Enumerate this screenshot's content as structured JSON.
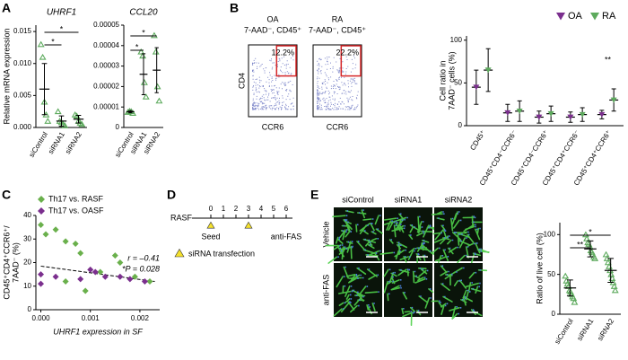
{
  "panel_labels": [
    "A",
    "B",
    "C",
    "D",
    "E"
  ],
  "chart_data": [
    {
      "type": "strip",
      "title": "UHRF1",
      "y_label": "Relative mRNA expression",
      "categories": [
        "siControl",
        "siRNA1",
        "siRNA2"
      ],
      "values": [
        [
          0.013,
          0.011,
          0.004,
          0.002,
          0.001
        ],
        [
          0.0025,
          0.001,
          0.0008,
          0.0005,
          0.0003
        ],
        [
          0.002,
          0.0018,
          0.001,
          0.0007,
          0.0005
        ]
      ],
      "means": [
        0.006,
        0.001,
        0.0013
      ],
      "errors": [
        0.004,
        0.0008,
        0.0006
      ],
      "color": "#5daa5d",
      "ylim": [
        0,
        0.016
      ],
      "yticks": [
        {
          "value": 0,
          "label": "0.000"
        },
        {
          "value": 0.005,
          "label": "0.005"
        },
        {
          "value": 0.01,
          "label": "0.010"
        },
        {
          "value": 0.015,
          "label": "0.015"
        }
      ],
      "significance": [
        "*",
        "*"
      ]
    },
    {
      "type": "strip",
      "title": "CCL20",
      "categories": [
        "siControl",
        "siRNA1",
        "siRNA2"
      ],
      "values": [
        [
          7.5e-06,
          8e-06,
          7.8e-06,
          7e-06
        ],
        [
          3.7e-05,
          3.5e-05,
          2.2e-05,
          1.5e-05
        ],
        [
          4.5e-05,
          3.7e-05,
          2e-05,
          1.3e-05
        ]
      ],
      "means": [
        7.7e-06,
        2.6e-05,
        2.8e-05
      ],
      "errors": [
        5e-07,
        1e-05,
        1.1e-05
      ],
      "color": "#5daa5d",
      "ylim": [
        0,
        5e-05
      ],
      "yticks": [
        0,
        1e-05,
        2e-05,
        3e-05,
        4e-05,
        5e-05
      ],
      "significance": [
        "*",
        "*"
      ]
    },
    {
      "type": "mean_error",
      "y_label": [
        "Cell ratio in",
        "7AAD⁻ cells (%)"
      ],
      "categories": [
        "CD45⁺",
        "CD45⁺CD4⁻CCR6⁻",
        "CD45⁺CD4⁻CCR6⁺",
        "CD45⁺CD4⁺CCR6⁻",
        "CD45⁺CD4⁺CCR6⁺"
      ],
      "series": [
        {
          "name": "OA",
          "color": "#7b2f8e",
          "values": [
            45,
            15,
            10,
            10,
            13
          ],
          "errors": [
            20,
            10,
            7,
            6,
            5
          ]
        },
        {
          "name": "RA",
          "color": "#5daa5d",
          "values": [
            65,
            17,
            14,
            13,
            30
          ],
          "errors": [
            25,
            12,
            9,
            8,
            13
          ]
        }
      ],
      "ylim": [
        0,
        105
      ],
      "yticks": [
        0,
        50,
        100
      ],
      "legend": "top-right",
      "significance": [
        "**"
      ]
    },
    {
      "type": "scatter",
      "y_label": [
        "CD45⁺CD4⁺CCR6⁺/",
        "7AAD⁻ (%)"
      ],
      "x_label": "UHRF1 expression in SF",
      "series": [
        {
          "name": "Th17 vs. RASF",
          "color": "#6ab04c",
          "x": [
            0,
            0.0001,
            0.0003,
            0.0005,
            0.0007,
            0.0005,
            0.0008,
            0.0009,
            0.0012,
            0.0015,
            0.0016,
            0.0019,
            0.0022
          ],
          "values": [
            36,
            32,
            34,
            29,
            28,
            12,
            24,
            8,
            16,
            23,
            20,
            14,
            12
          ]
        },
        {
          "name": "Th17 vs. OASF",
          "color": "#7b2f8e",
          "x": [
            0,
            0,
            0.0003,
            0.0008,
            0.001,
            0.0011,
            0.0013,
            0.0016,
            0.0018,
            0.0021
          ],
          "values": [
            15,
            11,
            14,
            13,
            17,
            16,
            14,
            14,
            13,
            12
          ]
        }
      ],
      "trend_line": {
        "x": [
          0,
          0.0023
        ],
        "y": [
          18.5,
          12
        ]
      },
      "annotations": [
        "r = –0.41",
        "*P = 0.028"
      ],
      "xlim": [
        -0.0001,
        0.0024
      ],
      "ylim": [
        0,
        40
      ],
      "xticks": [
        {
          "value": 0,
          "label": "0.000"
        },
        {
          "value": 0.001,
          "label": "0.001"
        },
        {
          "value": 0.002,
          "label": "0.002"
        }
      ],
      "yticks": [
        0,
        10,
        20,
        30,
        40
      ],
      "legend": "top-left"
    },
    {
      "type": "strip",
      "y_label": "Ratio of live cell (%)",
      "categories": [
        "siControl",
        "siRNA1",
        "siRNA2"
      ],
      "values": [
        [
          48,
          42,
          38,
          35,
          30,
          28,
          25,
          22,
          20,
          15
        ],
        [
          100,
          95,
          90,
          88,
          85,
          80,
          78,
          75,
          72,
          70
        ],
        [
          75,
          70,
          65,
          60,
          55,
          50,
          45,
          40,
          35,
          30
        ]
      ],
      "means": [
        33,
        82,
        55
      ],
      "errors": [
        10,
        10,
        15
      ],
      "color": "#5daa5d",
      "ylim": [
        0,
        115
      ],
      "yticks": [
        0,
        50,
        100
      ],
      "significance": [
        "**",
        "*"
      ]
    }
  ],
  "flow_plots": {
    "x_label": "CCR6",
    "y_label": "CD4",
    "plots": [
      {
        "title": "OA",
        "gate": "7-AAD⁻, CD45⁺",
        "percent": "12.2%"
      },
      {
        "title": "RA",
        "gate": "7-AAD⁻, CD45⁺",
        "percent": "22.2%"
      }
    ]
  },
  "timeline": {
    "label": "RASF",
    "ticks": [
      0,
      1,
      2,
      3,
      4,
      5,
      6
    ],
    "events": [
      "Seed",
      "anti-FAS"
    ],
    "legend": "siRNA transfection"
  },
  "micrographs": {
    "columns": [
      "siControl",
      "siRNA1",
      "siRNA2"
    ],
    "rows": [
      "Vehicle",
      "anti-FAS"
    ]
  }
}
